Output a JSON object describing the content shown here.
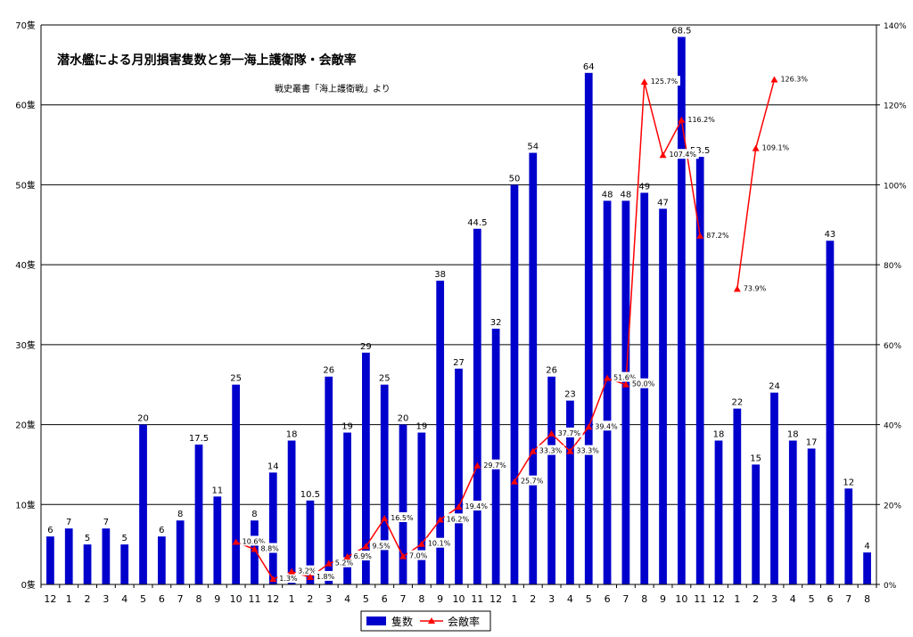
{
  "chart_data": {
    "type": "bar",
    "title": "潜水艦による月別損害隻数と第一海上護衛隊・会敵率",
    "subtitle": "戦史叢書「海上護衛戦」より",
    "categories": [
      "12",
      "1",
      "2",
      "3",
      "4",
      "5",
      "6",
      "7",
      "8",
      "9",
      "10",
      "11",
      "12",
      "1",
      "2",
      "3",
      "4",
      "5",
      "6",
      "7",
      "8",
      "9",
      "10",
      "11",
      "12",
      "1",
      "2",
      "3",
      "4",
      "5",
      "6",
      "7",
      "8",
      "9",
      "10",
      "11",
      "12",
      "1",
      "2",
      "3",
      "4",
      "5",
      "6",
      "7",
      "8"
    ],
    "series": [
      {
        "name": "隻数",
        "type": "bar",
        "axis": "left",
        "color": "#0000cc",
        "values": [
          6,
          7,
          5,
          7,
          5,
          20,
          6,
          8,
          17.5,
          11,
          25,
          8,
          14,
          18,
          10.5,
          26,
          19,
          29,
          25,
          20,
          19,
          38,
          27,
          44.5,
          32,
          50,
          54,
          26,
          23,
          64,
          48,
          48,
          49,
          47,
          68.5,
          53.5,
          18,
          22,
          15,
          24,
          18,
          17,
          43,
          12,
          4
        ],
        "labels": [
          "6",
          "7",
          "5",
          "7",
          "5",
          "20",
          "6",
          "8",
          "17.5",
          "11",
          "25",
          "8",
          "14",
          "18",
          "10.5",
          "26",
          "19",
          "29",
          "25",
          "20",
          "19",
          "38",
          "27",
          "44.5",
          "32",
          "50",
          "54",
          "26",
          "23",
          "64",
          "48",
          "48",
          "49",
          "47",
          "68.5",
          "53.5",
          "18",
          "22",
          "15",
          "24",
          "18",
          "17",
          "43",
          "12",
          "4"
        ]
      },
      {
        "name": "会敵率",
        "type": "line",
        "axis": "right",
        "color": "#ff0000",
        "values": [
          null,
          null,
          null,
          null,
          null,
          null,
          null,
          null,
          null,
          null,
          10.6,
          8.8,
          1.3,
          3.2,
          1.8,
          5.2,
          6.9,
          9.5,
          16.5,
          7.0,
          10.1,
          16.2,
          19.4,
          29.7,
          null,
          25.7,
          33.3,
          37.7,
          33.3,
          39.4,
          51.6,
          50.0,
          125.7,
          107.4,
          116.2,
          87.2,
          null,
          73.9,
          109.1,
          126.3,
          null,
          null,
          null,
          null,
          null
        ],
        "labels": [
          null,
          null,
          null,
          null,
          null,
          null,
          null,
          null,
          null,
          null,
          "10.6%",
          "8.8%",
          "1.3%",
          "3.2%",
          "1.8%",
          "5.2%",
          "6.9%",
          "9.5%",
          "16.5%",
          "7.0%",
          "10.1%",
          "16.2%",
          "19.4%",
          "29.7%",
          null,
          "25.7%",
          "33.3%",
          "37.7%",
          "33.3%",
          "39.4%",
          "51.6%",
          "50.0%",
          "125.7%",
          "107.4%",
          "116.2%",
          "87.2%",
          null,
          "73.9%",
          "109.1%",
          "126.3%",
          null,
          null,
          null,
          null,
          null
        ]
      }
    ],
    "ylim": [
      0,
      70
    ],
    "yticks": [
      "0隻",
      "10隻",
      "20隻",
      "30隻",
      "40隻",
      "50隻",
      "60隻",
      "70隻"
    ],
    "y2lim": [
      0,
      140
    ],
    "y2ticks": [
      "0%",
      "20%",
      "40%",
      "60%",
      "80%",
      "100%",
      "120%",
      "140%"
    ],
    "grid": true,
    "legend": "bottom"
  }
}
